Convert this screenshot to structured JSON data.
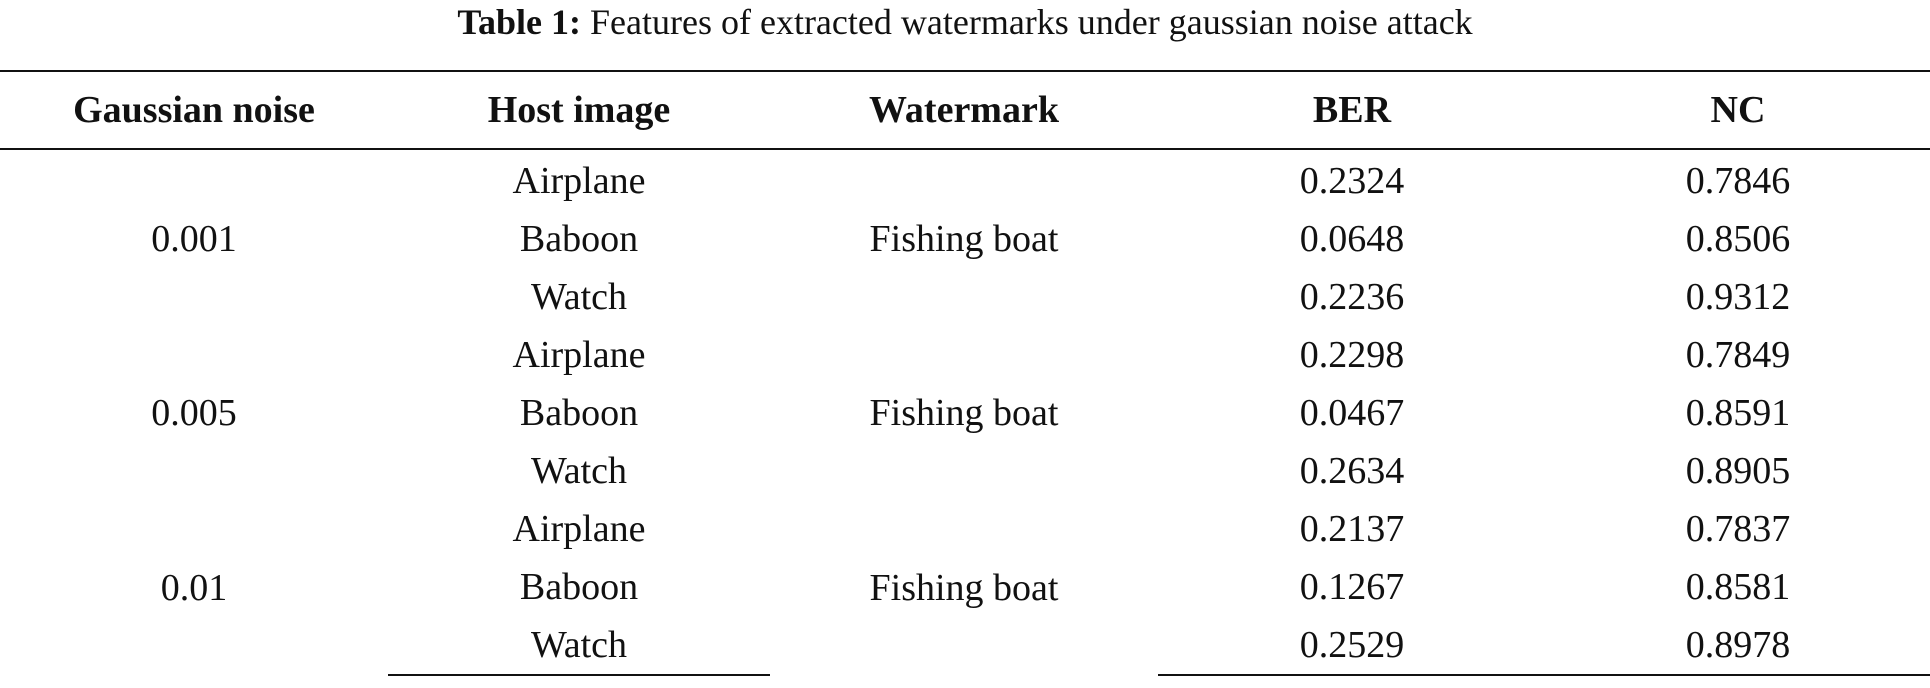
{
  "caption": {
    "label": "Table 1:",
    "text": "Features of extracted watermarks under gaussian noise attack"
  },
  "table": {
    "headers": [
      "Gaussian noise",
      "Host image",
      "Watermark",
      "BER",
      "NC"
    ],
    "groups": [
      {
        "noise": "0.001",
        "watermark": "Fishing boat",
        "rows": [
          {
            "host": "Airplane",
            "ber": "0.2324",
            "nc": "0.7846"
          },
          {
            "host": "Baboon",
            "ber": "0.0648",
            "nc": "0.8506"
          },
          {
            "host": "Watch",
            "ber": "0.2236",
            "nc": "0.9312"
          }
        ]
      },
      {
        "noise": "0.005",
        "watermark": "Fishing boat",
        "rows": [
          {
            "host": "Airplane",
            "ber": "0.2298",
            "nc": "0.7849"
          },
          {
            "host": "Baboon",
            "ber": "0.0467",
            "nc": "0.8591"
          },
          {
            "host": "Watch",
            "ber": "0.2634",
            "nc": "0.8905"
          }
        ]
      },
      {
        "noise": "0.01",
        "watermark": "Fishing boat",
        "rows": [
          {
            "host": "Airplane",
            "ber": "0.2137",
            "nc": "0.7837"
          },
          {
            "host": "Baboon",
            "ber": "0.1267",
            "nc": "0.8581"
          },
          {
            "host": "Watch",
            "ber": "0.2529",
            "nc": "0.8978"
          }
        ]
      }
    ]
  }
}
